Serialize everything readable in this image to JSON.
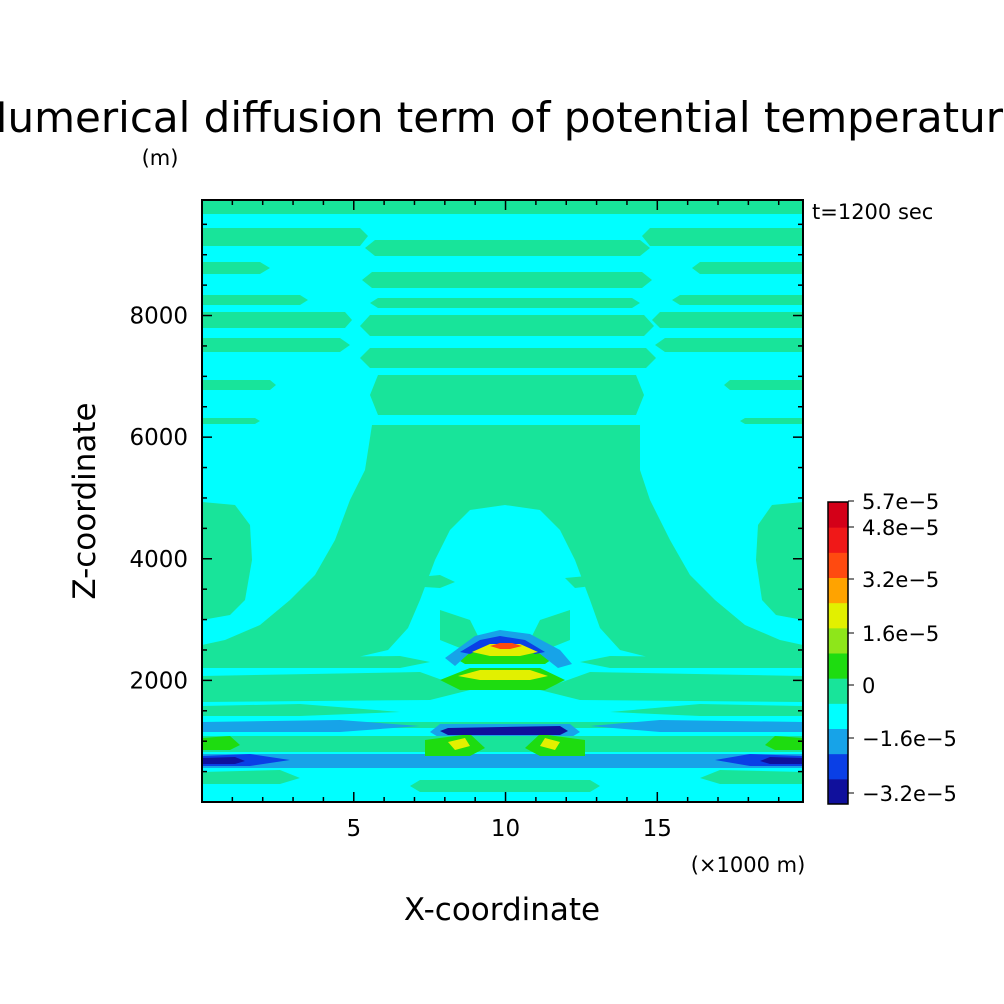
{
  "chart_data": {
    "type": "heatmap",
    "title": "Numerical diffusion term of potential temperature",
    "title_unit": "(m)",
    "time_label": "t=1200 sec",
    "xlabel": "X-coordinate",
    "xunit": "(×1000 m)",
    "ylabel": "Z-coordinate",
    "xlim": [
      0,
      19.8
    ],
    "ylim": [
      0,
      9900
    ],
    "xticks": [
      5,
      10,
      15
    ],
    "xtick_labels": [
      "5",
      "10",
      "15"
    ],
    "yticks": [
      2000,
      4000,
      6000,
      8000
    ],
    "ytick_labels": [
      "2000",
      "4000",
      "6000",
      "8000"
    ],
    "colorbar": {
      "levels": [
        -3.2e-05,
        -1.6e-05,
        0,
        1.6e-05,
        3.2e-05,
        4.8e-05,
        5.7e-05
      ],
      "labels": [
        "−3.2e−5",
        "−1.6e−5",
        "0",
        "1.6e−5",
        "3.2e−5",
        "4.8e−5",
        "5.7e−5"
      ],
      "colors": [
        "#10109c",
        "#0a3fe6",
        "#17a3e8",
        "#00ffff",
        "#18e49a",
        "#1edc10",
        "#8ee61a",
        "#e2f000",
        "#ffa300",
        "#ff4a10",
        "#f01818",
        "#d40018"
      ]
    },
    "palette": {
      "background": "#00ffff",
      "positive_small": "#18e49a",
      "negative_small": "#17a3e8",
      "negative_mid": "#0a3fe6",
      "negative_strong": "#10109c",
      "positive_mid": "#1edc10",
      "positive_high": "#e2f000",
      "positive_peak": "#ff4a10",
      "axis": "#000000"
    }
  }
}
